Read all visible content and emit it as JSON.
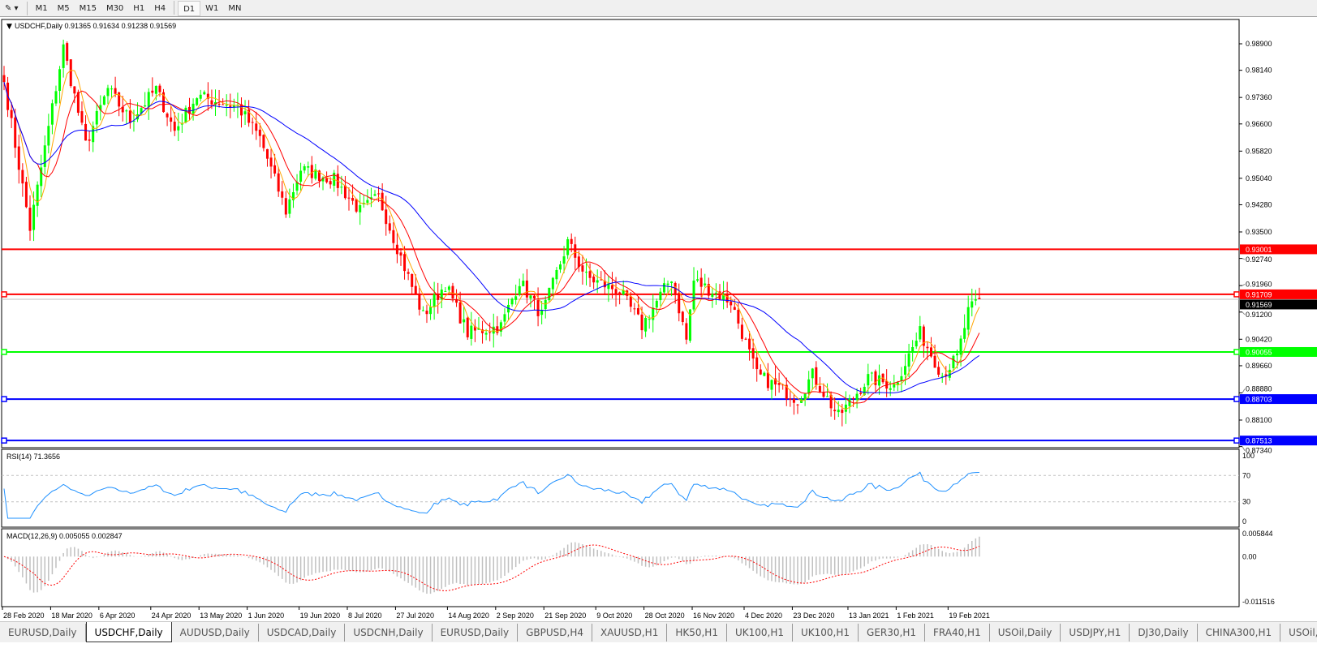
{
  "toolbar": {
    "timeframes": [
      "M1",
      "M5",
      "M15",
      "M30",
      "H1",
      "H4",
      "D1",
      "W1",
      "MN"
    ],
    "active": "D1"
  },
  "chart_data": {
    "type": "candlestick",
    "symbol_title": "USDCHF,Daily",
    "ohlc_readout": "0.91365 0.91634 0.91238 0.91569",
    "current_price": "0.91569",
    "price_ticks": [
      "0.98900",
      "0.98140",
      "0.97360",
      "0.96600",
      "0.95820",
      "0.95040",
      "0.94280",
      "0.93500",
      "0.92740",
      "0.91960",
      "0.91200",
      "0.90420",
      "0.89660",
      "0.88880",
      "0.88100",
      "0.87340"
    ],
    "ylim": [
      0.8734,
      0.9925
    ],
    "date_ticks": [
      "28 Feb 2020",
      "18 Mar 2020",
      "6 Apr 2020",
      "24 Apr 2020",
      "13 May 2020",
      "1 Jun 2020",
      "19 Jun 2020",
      "8 Jul 2020",
      "27 Jul 2020",
      "14 Aug 2020",
      "2 Sep 2020",
      "21 Sep 2020",
      "9 Oct 2020",
      "28 Oct 2020",
      "16 Nov 2020",
      "4 Dec 2020",
      "23 Dec 2020",
      "13 Jan 2021",
      "1 Feb 2021",
      "19 Feb 2021"
    ],
    "approx_close_keypoints": [
      [
        "2020-02-28",
        0.978
      ],
      [
        "2020-03-10",
        0.936
      ],
      [
        "2020-03-23",
        0.988
      ],
      [
        "2020-03-31",
        0.96
      ],
      [
        "2020-04-08",
        0.976
      ],
      [
        "2020-04-16",
        0.967
      ],
      [
        "2020-04-27",
        0.976
      ],
      [
        "2020-05-04",
        0.964
      ],
      [
        "2020-05-12",
        0.974
      ],
      [
        "2020-05-27",
        0.971
      ],
      [
        "2020-06-04",
        0.962
      ],
      [
        "2020-06-15",
        0.941
      ],
      [
        "2020-06-19",
        0.953
      ],
      [
        "2020-07-02",
        0.95
      ],
      [
        "2020-07-13",
        0.941
      ],
      [
        "2020-07-20",
        0.945
      ],
      [
        "2020-07-30",
        0.922
      ],
      [
        "2020-08-05",
        0.911
      ],
      [
        "2020-08-13",
        0.92
      ],
      [
        "2020-08-21",
        0.906
      ],
      [
        "2020-09-03",
        0.908
      ],
      [
        "2020-09-10",
        0.921
      ],
      [
        "2020-09-18",
        0.911
      ],
      [
        "2020-09-29",
        0.932
      ],
      [
        "2020-10-06",
        0.922
      ],
      [
        "2020-10-19",
        0.918
      ],
      [
        "2020-10-27",
        0.908
      ],
      [
        "2020-11-06",
        0.922
      ],
      [
        "2020-11-12",
        0.904
      ],
      [
        "2020-11-16",
        0.921
      ],
      [
        "2020-11-30",
        0.915
      ],
      [
        "2020-12-09",
        0.894
      ],
      [
        "2020-12-24",
        0.887
      ],
      [
        "2020-12-30",
        0.894
      ],
      [
        "2021-01-08",
        0.882
      ],
      [
        "2021-01-20",
        0.893
      ],
      [
        "2021-01-29",
        0.891
      ],
      [
        "2021-02-09",
        0.906
      ],
      [
        "2021-02-17",
        0.894
      ],
      [
        "2021-02-23",
        0.899
      ],
      [
        "2021-02-26",
        0.912
      ],
      [
        "2021-03-03",
        0.9157
      ]
    ],
    "horizontal_lines": [
      {
        "price": "0.93001",
        "color": "#ff0000"
      },
      {
        "price": "0.91709",
        "color": "#ff0000"
      },
      {
        "price": "0.90055",
        "color": "#00ff00"
      },
      {
        "price": "0.88703",
        "color": "#0000ff"
      },
      {
        "price": "0.87513",
        "color": "#0000ff"
      }
    ],
    "moving_averages": [
      {
        "color": "#ffa500"
      },
      {
        "color": "#ff0000"
      },
      {
        "color": "#0000ff"
      }
    ],
    "colors": {
      "bull": "#00ff00",
      "bear": "#ff0000"
    },
    "rsi": {
      "label": "RSI(14) 71.3656",
      "ticks": [
        "100",
        "70",
        "30",
        "0"
      ],
      "levels": [
        70,
        30
      ],
      "color": "#1e90ff"
    },
    "macd": {
      "label": "MACD(12,26,9) 0.005055 0.002847",
      "ticks": [
        "0.005844",
        "0.00",
        "-0.011516"
      ],
      "range": [
        -0.011516,
        0.005844
      ]
    }
  },
  "tabs": [
    "EURUSD,Daily",
    "USDCHF,Daily",
    "AUDUSD,Daily",
    "USDCAD,Daily",
    "USDCNH,Daily",
    "EURUSD,Daily",
    "GBPUSD,H4",
    "XAUUSD,H1",
    "HK50,H1",
    "UK100,H1",
    "UK100,H1",
    "GER30,H1",
    "FRA40,H1",
    "USOil,Daily",
    "USDJPY,H1",
    "DJ30,Daily",
    "CHINA300,H1",
    "USOil,"
  ],
  "active_tab": "USDCHF,Daily"
}
